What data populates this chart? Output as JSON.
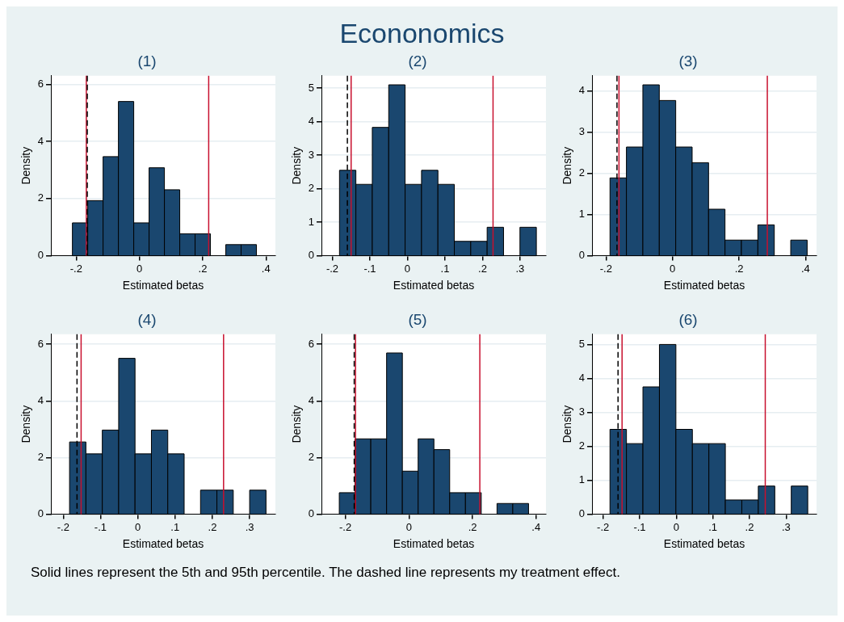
{
  "chart_data": [
    {
      "type": "other",
      "title": "Econonomics"
    },
    {
      "type": "histogram",
      "title": "(1)",
      "xlabel": "Estimated betas",
      "ylabel": "Density",
      "color": "#1a476f",
      "bins": [
        -0.212,
        -0.1635,
        -0.115,
        -0.0665,
        -0.018,
        0.0305,
        0.079,
        0.1275,
        0.176,
        0.2245,
        0.273,
        0.3215,
        0.37
      ],
      "values": [
        1.15,
        1.93,
        3.47,
        5.4,
        1.15,
        3.08,
        2.31,
        0.77,
        0.77,
        0,
        0.39,
        0.39
      ],
      "xlim": [
        -0.28,
        0.43
      ],
      "ylim": [
        0,
        6.3
      ],
      "xticks": [
        {
          "value": -0.2,
          "label": "-.2"
        },
        {
          "value": 0,
          "label": "0"
        },
        {
          "value": 0.2,
          "label": ".2"
        },
        {
          "value": 0.4,
          "label": ".4"
        }
      ],
      "yticks": [
        0,
        2,
        4,
        6
      ],
      "grid": "y",
      "ref_lines": [
        {
          "axis": "x",
          "value": -0.168,
          "color": "#c8102e",
          "line_style": "solid"
        },
        {
          "axis": "x",
          "value": 0.219,
          "color": "#c8102e",
          "line_style": "solid"
        },
        {
          "axis": "x",
          "value": -0.165,
          "color": "#000000",
          "line_style": "dashed"
        }
      ]
    },
    {
      "type": "histogram",
      "title": "(2)",
      "xlabel": "Estimated betas",
      "ylabel": "Density",
      "color": "#1a476f",
      "bins": [
        -0.181,
        -0.1373,
        -0.0936,
        -0.0499,
        -0.0062,
        0.0375,
        0.0812,
        0.1249,
        0.1686,
        0.2123,
        0.256,
        0.2997,
        0.3434
      ],
      "values": [
        2.55,
        2.13,
        3.83,
        5.1,
        2.13,
        2.55,
        2.13,
        0.43,
        0.43,
        0.85,
        0,
        0.85
      ],
      "xlim": [
        -0.229,
        0.369
      ],
      "ylim": [
        0,
        5.37
      ],
      "xticks": [
        {
          "value": -0.2,
          "label": "-.2"
        },
        {
          "value": -0.1,
          "label": "-.1"
        },
        {
          "value": 0,
          "label": "0"
        },
        {
          "value": 0.1,
          "label": ".1"
        },
        {
          "value": 0.2,
          "label": ".2"
        },
        {
          "value": 0.3,
          "label": ".3"
        }
      ],
      "yticks": [
        0,
        1,
        2,
        3,
        4,
        5
      ],
      "grid": "y",
      "ref_lines": [
        {
          "axis": "x",
          "value": -0.15,
          "color": "#c8102e",
          "line_style": "solid"
        },
        {
          "axis": "x",
          "value": 0.228,
          "color": "#c8102e",
          "line_style": "solid"
        },
        {
          "axis": "x",
          "value": -0.16,
          "color": "#000000",
          "line_style": "dashed"
        }
      ]
    },
    {
      "type": "histogram",
      "title": "(3)",
      "xlabel": "Estimated betas",
      "ylabel": "Density",
      "color": "#1a476f",
      "bins": [
        -0.188,
        -0.1386,
        -0.0892,
        -0.0398,
        0.0096,
        0.059,
        0.1084,
        0.1578,
        0.2072,
        0.2566,
        0.306,
        0.3554,
        0.4048
      ],
      "values": [
        1.89,
        2.64,
        4.15,
        3.77,
        2.64,
        2.26,
        1.13,
        0.38,
        0.38,
        0.75,
        0,
        0.38
      ],
      "xlim": [
        -0.242,
        0.433
      ],
      "ylim": [
        0,
        4.37
      ],
      "xticks": [
        {
          "value": -0.2,
          "label": "-.2"
        },
        {
          "value": 0,
          "label": "0"
        },
        {
          "value": 0.2,
          "label": ".2"
        },
        {
          "value": 0.4,
          "label": ".4"
        }
      ],
      "yticks": [
        0,
        1,
        2,
        3,
        4
      ],
      "grid": "y",
      "ref_lines": [
        {
          "axis": "x",
          "value": -0.161,
          "color": "#c8102e",
          "line_style": "solid"
        },
        {
          "axis": "x",
          "value": 0.285,
          "color": "#c8102e",
          "line_style": "solid"
        },
        {
          "axis": "x",
          "value": -0.167,
          "color": "#000000",
          "line_style": "dashed"
        }
      ]
    },
    {
      "type": "histogram",
      "title": "(4)",
      "xlabel": "Estimated betas",
      "ylabel": "Density",
      "color": "#1a476f",
      "bins": [
        -0.183,
        -0.1391,
        -0.0952,
        -0.0513,
        -0.0074,
        0.0365,
        0.0804,
        0.1243,
        0.1682,
        0.2121,
        0.256,
        0.2999,
        0.3438
      ],
      "values": [
        2.55,
        2.13,
        2.97,
        5.5,
        2.13,
        2.97,
        2.13,
        0,
        0.85,
        0.85,
        0,
        0.85
      ],
      "xlim": [
        -0.233,
        0.369
      ],
      "ylim": [
        0,
        6.35
      ],
      "xticks": [
        {
          "value": -0.2,
          "label": "-.2"
        },
        {
          "value": -0.1,
          "label": "-.1"
        },
        {
          "value": 0,
          "label": "0"
        },
        {
          "value": 0.1,
          "label": ".1"
        },
        {
          "value": 0.2,
          "label": ".2"
        },
        {
          "value": 0.3,
          "label": ".3"
        }
      ],
      "yticks": [
        0,
        2,
        4,
        6
      ],
      "grid": "y",
      "ref_lines": [
        {
          "axis": "x",
          "value": -0.152,
          "color": "#c8102e",
          "line_style": "solid"
        },
        {
          "axis": "x",
          "value": 0.23,
          "color": "#c8102e",
          "line_style": "solid"
        },
        {
          "axis": "x",
          "value": -0.163,
          "color": "#000000",
          "line_style": "dashed"
        }
      ]
    },
    {
      "type": "histogram",
      "title": "(5)",
      "xlabel": "Estimated betas",
      "ylabel": "Density",
      "color": "#1a476f",
      "bins": [
        -0.219,
        -0.1694,
        -0.1198,
        -0.0702,
        -0.0206,
        0.029,
        0.0786,
        0.1282,
        0.1778,
        0.2274,
        0.277,
        0.3266,
        0.3762
      ],
      "values": [
        0.76,
        2.66,
        2.66,
        5.69,
        1.52,
        2.66,
        2.28,
        0.76,
        0.76,
        0,
        0.38,
        0.38
      ],
      "xlim": [
        -0.275,
        0.431
      ],
      "ylim": [
        0,
        6.35
      ],
      "xticks": [
        {
          "value": -0.2,
          "label": "-.2"
        },
        {
          "value": 0,
          "label": "0"
        },
        {
          "value": 0.2,
          "label": ".2"
        },
        {
          "value": 0.4,
          "label": ".4"
        }
      ],
      "yticks": [
        0,
        2,
        4,
        6
      ],
      "grid": "y",
      "ref_lines": [
        {
          "axis": "x",
          "value": -0.168,
          "color": "#c8102e",
          "line_style": "solid"
        },
        {
          "axis": "x",
          "value": 0.223,
          "color": "#c8102e",
          "line_style": "solid"
        },
        {
          "axis": "x",
          "value": -0.172,
          "color": "#000000",
          "line_style": "dashed"
        }
      ]
    },
    {
      "type": "histogram",
      "title": "(6)",
      "xlabel": "Estimated betas",
      "ylabel": "Density",
      "color": "#1a476f",
      "bins": [
        -0.181,
        -0.136,
        -0.091,
        -0.046,
        -0.001,
        0.044,
        0.089,
        0.134,
        0.179,
        0.224,
        0.269,
        0.314,
        0.359
      ],
      "values": [
        2.5,
        2.08,
        3.75,
        5.0,
        2.5,
        2.08,
        2.08,
        0.42,
        0.42,
        0.83,
        0,
        0.83
      ],
      "xlim": [
        -0.23,
        0.383
      ],
      "ylim": [
        0,
        5.3
      ],
      "xticks": [
        {
          "value": -0.2,
          "label": "-.2"
        },
        {
          "value": -0.1,
          "label": "-.1"
        },
        {
          "value": 0,
          "label": "0"
        },
        {
          "value": 0.1,
          "label": ".1"
        },
        {
          "value": 0.2,
          "label": ".2"
        },
        {
          "value": 0.3,
          "label": ".3"
        }
      ],
      "yticks": [
        0,
        1,
        2,
        3,
        4,
        5
      ],
      "grid": "y",
      "ref_lines": [
        {
          "axis": "x",
          "value": -0.148,
          "color": "#c8102e",
          "line_style": "solid"
        },
        {
          "axis": "x",
          "value": 0.243,
          "color": "#c8102e",
          "line_style": "solid"
        },
        {
          "axis": "x",
          "value": -0.159,
          "color": "#000000",
          "line_style": "dashed"
        }
      ]
    },
    {
      "type": "other",
      "annotations": [
        "Solid lines represent the 5th and 95th percentile. The dashed line represents my treatment effect."
      ]
    }
  ]
}
